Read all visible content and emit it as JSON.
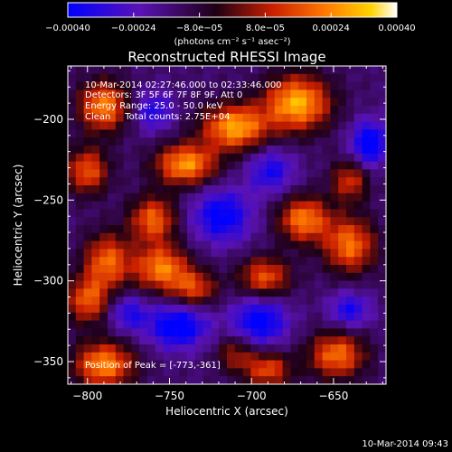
{
  "chart_data": {
    "type": "heatmap",
    "title": "Reconstructed RHESSI Image",
    "xlabel": "Heliocentric X (arcsec)",
    "ylabel": "Heliocentric Y (arcsec)",
    "xlim": [
      -812,
      -618
    ],
    "ylim": [
      -364,
      -167
    ],
    "x_ticks": [
      -800,
      -750,
      -700,
      -650
    ],
    "y_ticks": [
      -350,
      -300,
      -250,
      -200
    ],
    "x_tick_labels": [
      "−800",
      "−750",
      "−700",
      "−650"
    ],
    "y_tick_labels": [
      "−350",
      "−300",
      "−250",
      "−200"
    ],
    "colorbar": {
      "range": [
        -0.0004,
        0.0004
      ],
      "ticks": [
        -0.0004,
        -0.00024,
        -8e-05,
        8e-05,
        0.00024,
        0.0004
      ],
      "tick_labels": [
        "−0.00040",
        "−0.00024",
        "−8.0e−05",
        "8.0e−05",
        "0.00024",
        "0.00040"
      ],
      "unit_label": "(photons cm⁻² s⁻¹ asec⁻²)",
      "colormap": [
        "#0000ff",
        "#5a12b4",
        "#1e0014",
        "#c81e00",
        "#ff7800",
        "#ffd200",
        "#ffffff"
      ]
    },
    "annotations": [
      "10-Mar-2014 02:27:46.000 to 02:33:46.000",
      "Detectors: 3F 5F 6F 7F 8F 9F, Att 0",
      "Energy Range: 25.0 - 50.0 keV",
      "Clean     Total counts: 2.75E+04"
    ],
    "peak_label": "Position of Peak = [-773,-361]",
    "grid_resolution": [
      40,
      40
    ],
    "features": [
      {
        "x": -790,
        "y": -192,
        "amp": 1.0,
        "sx": 11,
        "sy": 11
      },
      {
        "x": -800,
        "y": -232,
        "amp": 0.85,
        "sx": 9,
        "sy": 10
      },
      {
        "x": -740,
        "y": -228,
        "amp": 1.1,
        "sx": 13,
        "sy": 9
      },
      {
        "x": -710,
        "y": -205,
        "amp": 1.15,
        "sx": 14,
        "sy": 10
      },
      {
        "x": -672,
        "y": -190,
        "amp": 1.2,
        "sx": 14,
        "sy": 12
      },
      {
        "x": -760,
        "y": -262,
        "amp": 0.9,
        "sx": 10,
        "sy": 10
      },
      {
        "x": -755,
        "y": -292,
        "amp": 1.0,
        "sx": 12,
        "sy": 10
      },
      {
        "x": -788,
        "y": -288,
        "amp": 0.9,
        "sx": 10,
        "sy": 12
      },
      {
        "x": -800,
        "y": -312,
        "amp": 0.85,
        "sx": 9,
        "sy": 10
      },
      {
        "x": -735,
        "y": -305,
        "amp": 0.75,
        "sx": 10,
        "sy": 8
      },
      {
        "x": -692,
        "y": -298,
        "amp": 0.85,
        "sx": 11,
        "sy": 9
      },
      {
        "x": -668,
        "y": -262,
        "amp": 1.0,
        "sx": 11,
        "sy": 10
      },
      {
        "x": -640,
        "y": -278,
        "amp": 0.95,
        "sx": 11,
        "sy": 12
      },
      {
        "x": -640,
        "y": -238,
        "amp": 0.7,
        "sx": 8,
        "sy": 9
      },
      {
        "x": -790,
        "y": -352,
        "amp": 1.05,
        "sx": 13,
        "sy": 10
      },
      {
        "x": -710,
        "y": -345,
        "amp": 0.55,
        "sx": 8,
        "sy": 8
      },
      {
        "x": -690,
        "y": -355,
        "amp": 0.8,
        "sx": 10,
        "sy": 8
      },
      {
        "x": -648,
        "y": -346,
        "amp": 0.95,
        "sx": 12,
        "sy": 10
      },
      {
        "x": -718,
        "y": -260,
        "amp": -0.75,
        "sx": 13,
        "sy": 12
      },
      {
        "x": -688,
        "y": -232,
        "amp": -0.6,
        "sx": 10,
        "sy": 10
      },
      {
        "x": -628,
        "y": -215,
        "amp": -0.85,
        "sx": 8,
        "sy": 10
      },
      {
        "x": -745,
        "y": -328,
        "amp": -0.85,
        "sx": 13,
        "sy": 10
      },
      {
        "x": -695,
        "y": -325,
        "amp": -0.8,
        "sx": 12,
        "sy": 11
      },
      {
        "x": -775,
        "y": -320,
        "amp": -0.55,
        "sx": 8,
        "sy": 8
      },
      {
        "x": -760,
        "y": -195,
        "amp": -0.55,
        "sx": 9,
        "sy": 9
      },
      {
        "x": -640,
        "y": -318,
        "amp": -0.6,
        "sx": 9,
        "sy": 8
      }
    ]
  },
  "timestamp": "10-Mar-2014 09:43"
}
